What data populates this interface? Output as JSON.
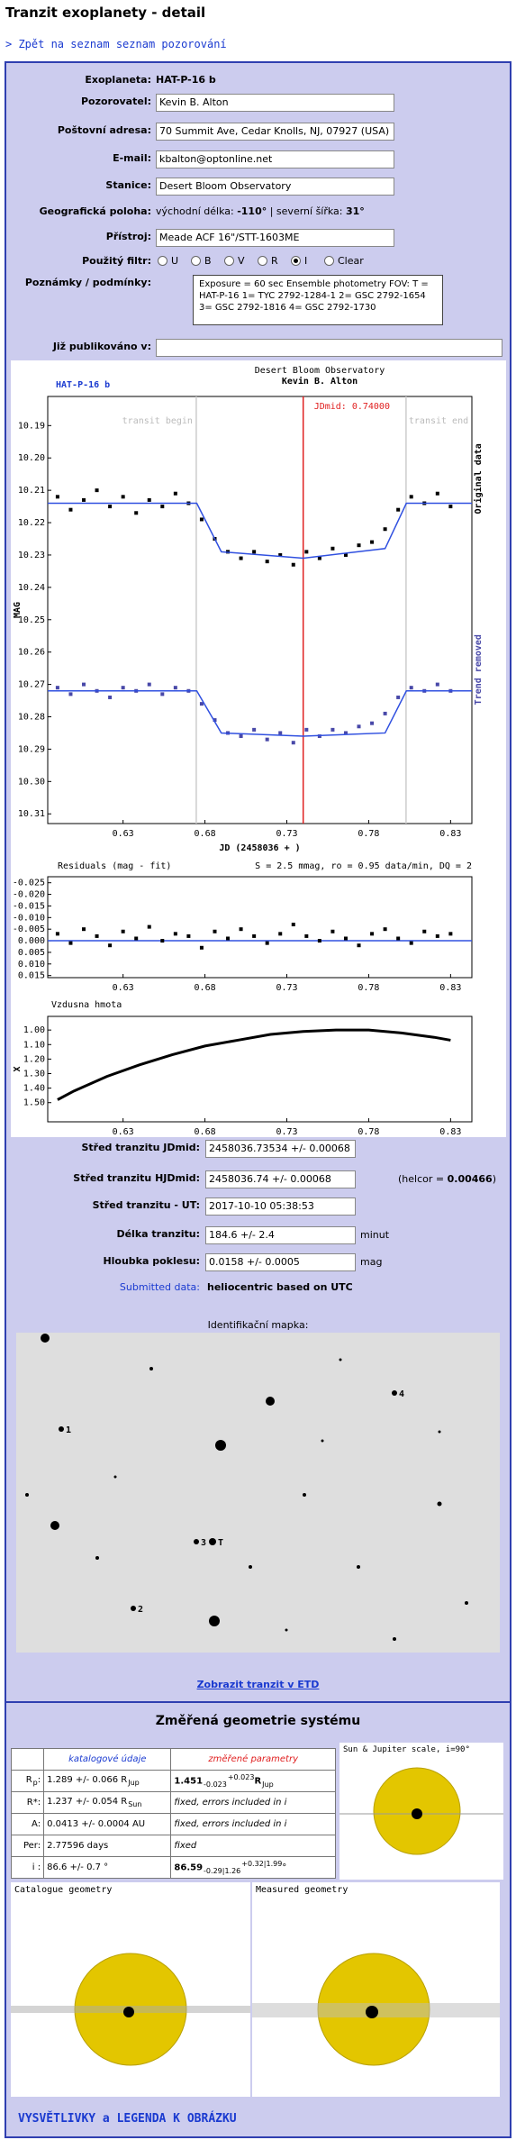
{
  "header": {
    "title": "Tranzit exoplanety - detail",
    "back_link": "> Zpět na seznam seznam pozorování"
  },
  "form": {
    "rows": [
      {
        "label": "Exoplaneta:",
        "value": "HAT-P-16 b"
      },
      {
        "label": "Pozorovatel:",
        "value": "Kevin B. Alton"
      },
      {
        "label": "Poštovní adresa:",
        "value": "70 Summit Ave, Cedar Knolls, NJ, 07927 (USA)"
      },
      {
        "label": "E-mail:",
        "value": "kbalton@optonline.net"
      },
      {
        "label": "Stanice:",
        "value": "Desert Bloom Observatory"
      },
      {
        "label": "Geografická poloha:",
        "segments": [
          {
            "t": "východní délka: "
          },
          {
            "t": "-110°",
            "f": "b"
          },
          {
            "t": " | severní šířka: "
          },
          {
            "t": "31°",
            "f": "b"
          }
        ]
      },
      {
        "label": "Přístroj:",
        "value": "Meade ACF 16\"/STT-1603ME"
      },
      {
        "label": "Použitý filtr:",
        "options": [
          "U",
          "B",
          "V",
          "R",
          "I",
          "Clear"
        ],
        "selected": 4
      },
      {
        "label": "Poznámky / podmínky:",
        "note": "Exposure = 60 sec Ensemble photometry FOV: T = HAT-P-16 1= TYC 2792-1284-1 2= GSC 2792-1654 3= GSC 2792-1816 4= GSC 2792-1730"
      },
      {
        "label": "Již publikováno v:"
      }
    ]
  },
  "chart_data": [
    {
      "type": "scatter",
      "title": "HAT-P-16 b",
      "station": "Desert Bloom Observatory",
      "observer": "Kevin B. Alton",
      "xlabel": "JD (2458036 + )",
      "ylabel": "MAG",
      "xlim": [
        0.584,
        0.843
      ],
      "ylim": [
        10.181,
        10.313
      ],
      "y_inverted": true,
      "xticks": [
        0.63,
        0.68,
        0.73,
        0.78,
        0.83
      ],
      "yticks": [
        10.19,
        {
          "value": 10.2,
          "label": "10.20"
        },
        10.21,
        10.22,
        10.23,
        10.24,
        10.25,
        10.26,
        10.27,
        10.28,
        10.29,
        {
          "value": 10.3,
          "label": "10.30"
        },
        10.31
      ],
      "markers": [
        {
          "label": "transit begin",
          "x": 0.6747,
          "color": "#cccccc"
        },
        {
          "label": "transit end",
          "x": 0.8028,
          "color": "#cccccc"
        },
        {
          "label": "JDmid: 0.74000",
          "x": 0.74,
          "color": "#e02020"
        }
      ],
      "series": [
        {
          "name": "Original data",
          "color": "#000000",
          "style": "points",
          "x": [
            0.59,
            0.598,
            0.606,
            0.614,
            0.622,
            0.63,
            0.638,
            0.646,
            0.654,
            0.662,
            0.67,
            0.678,
            0.686,
            0.694,
            0.702,
            0.71,
            0.718,
            0.726,
            0.734,
            0.742,
            0.75,
            0.758,
            0.766,
            0.774,
            0.782,
            0.79,
            0.798,
            0.806,
            0.814,
            0.822,
            0.83
          ],
          "values": [
            10.212,
            10.216,
            10.213,
            10.21,
            10.215,
            10.212,
            10.217,
            10.213,
            10.215,
            10.211,
            10.214,
            10.219,
            10.225,
            10.229,
            10.231,
            10.229,
            10.232,
            10.23,
            10.233,
            10.229,
            10.231,
            10.228,
            10.23,
            10.227,
            10.226,
            10.222,
            10.216,
            10.212,
            10.214,
            10.211,
            10.215
          ]
        },
        {
          "color": "#3050e0",
          "style": "line",
          "x": [
            0.584,
            0.675,
            0.69,
            0.74,
            0.79,
            0.803,
            0.843
          ],
          "values": [
            10.214,
            10.214,
            10.229,
            10.231,
            10.228,
            10.214,
            10.214
          ]
        },
        {
          "name": "Trend removed",
          "color": "#4848a8",
          "style": "points",
          "x": [
            0.59,
            0.598,
            0.606,
            0.614,
            0.622,
            0.63,
            0.638,
            0.646,
            0.654,
            0.662,
            0.67,
            0.678,
            0.686,
            0.694,
            0.702,
            0.71,
            0.718,
            0.726,
            0.734,
            0.742,
            0.75,
            0.758,
            0.766,
            0.774,
            0.782,
            0.79,
            0.798,
            0.806,
            0.814,
            0.822,
            0.83
          ],
          "values": [
            10.271,
            10.273,
            10.27,
            10.272,
            10.274,
            10.271,
            10.272,
            10.27,
            10.273,
            10.271,
            10.272,
            10.276,
            10.281,
            10.285,
            10.286,
            10.284,
            10.287,
            10.285,
            10.288,
            10.284,
            10.286,
            10.284,
            10.285,
            10.283,
            10.282,
            10.279,
            10.274,
            10.271,
            10.272,
            10.27,
            10.272
          ]
        },
        {
          "color": "#3050e0",
          "style": "line",
          "x": [
            0.584,
            0.675,
            0.69,
            0.74,
            0.79,
            0.803,
            0.843
          ],
          "values": [
            10.272,
            10.272,
            10.285,
            10.286,
            10.285,
            10.272,
            10.272
          ]
        }
      ]
    },
    {
      "type": "scatter",
      "title": "Residuals (mag - fit)",
      "stats": "S = 2.5 mmag, ro = 0.95 data/min, DQ = 2",
      "xlim": [
        0.584,
        0.843
      ],
      "ylim": [
        -0.0276,
        0.0159
      ],
      "y_inverted": true,
      "xticks": [
        0.63,
        0.68,
        0.73,
        0.78,
        0.83
      ],
      "yticks": [
        -0.025,
        {
          "value": -0.02,
          "label": "-0.020"
        },
        -0.015,
        {
          "value": -0.01,
          "label": "-0.010"
        },
        -0.005,
        {
          "value": 0,
          "label": "0.000"
        },
        0.005,
        {
          "value": 0.01,
          "label": "0.010"
        },
        0.015
      ],
      "reference_lines": [
        {
          "y": 0,
          "color": "#3050e0"
        }
      ],
      "series": [
        {
          "color": "#000000",
          "style": "points",
          "x": [
            0.59,
            0.598,
            0.606,
            0.614,
            0.622,
            0.63,
            0.638,
            0.646,
            0.654,
            0.662,
            0.67,
            0.678,
            0.686,
            0.694,
            0.702,
            0.71,
            0.718,
            0.726,
            0.734,
            0.742,
            0.75,
            0.758,
            0.766,
            0.774,
            0.782,
            0.79,
            0.798,
            0.806,
            0.814,
            0.822,
            0.83
          ],
          "values": [
            -0.003,
            0.001,
            -0.005,
            -0.002,
            0.002,
            -0.004,
            -0.001,
            -0.006,
            0,
            -0.003,
            -0.002,
            0.003,
            -0.004,
            -0.001,
            -0.005,
            -0.002,
            0.001,
            -0.003,
            -0.007,
            -0.002,
            0,
            -0.004,
            -0.001,
            0.002,
            -0.003,
            -0.005,
            -0.001,
            0.001,
            -0.004,
            -0.002,
            -0.003
          ]
        }
      ]
    },
    {
      "type": "line",
      "title": "Vzdusna hmota",
      "ylabel": "X",
      "xlim": [
        0.584,
        0.843
      ],
      "ylim": [
        0.906,
        1.632
      ],
      "y_inverted": true,
      "xticks": [
        0.63,
        0.68,
        0.73,
        0.78,
        0.83
      ],
      "yticks": [
        {
          "value": 1,
          "label": "1.00"
        },
        {
          "value": 1.1,
          "label": "1.10"
        },
        {
          "value": 1.2,
          "label": "1.20"
        },
        {
          "value": 1.3,
          "label": "1.30"
        },
        {
          "value": 1.4,
          "label": "1.40"
        },
        {
          "value": 1.5,
          "label": "1.50"
        }
      ],
      "series": [
        {
          "color": "#000000",
          "style": "line",
          "x": [
            0.59,
            0.6,
            0.62,
            0.64,
            0.66,
            0.68,
            0.7,
            0.72,
            0.74,
            0.76,
            0.78,
            0.8,
            0.82,
            0.83
          ],
          "values": [
            1.48,
            1.42,
            1.32,
            1.24,
            1.17,
            1.11,
            1.07,
            1.03,
            1.01,
            1,
            1,
            1.02,
            1.05,
            1.07
          ]
        }
      ]
    }
  ],
  "results": {
    "rows": [
      {
        "label": "Střed tranzitu JDmid:",
        "value": "2458036.73534 +/- 0.00068"
      },
      {
        "label": "Střed tranzitu HJDmid:",
        "value": "2458036.74 +/- 0.00068",
        "note": [
          {
            "t": "(helcor = "
          },
          {
            "t": "0.00466",
            "f": "b"
          },
          {
            "t": ")"
          }
        ]
      },
      {
        "label": "Střed tranzitu - UT:",
        "value": "2017-10-10 05:38:53"
      },
      {
        "label": "Délka tranzitu:",
        "value": "184.6 +/- 2.4",
        "unit": "minut"
      },
      {
        "label": "Hloubka poklesu:",
        "value": "0.0158 +/- 0.0005",
        "unit": "mag"
      },
      {
        "label": "Submitted data:",
        "text": "heliocentric based on UTC"
      }
    ]
  },
  "map": {
    "title": "Identifikační mapka:",
    "labels": [
      "1",
      "2",
      "3",
      "4",
      "T"
    ],
    "link": "Zobrazit tranzit v ETD"
  },
  "geometry": {
    "title": "Změřená geometrie systému",
    "headers": [
      "katalogové údaje",
      "změřené parametry"
    ],
    "rows": [
      {
        "param": [
          {
            "t": "R"
          },
          {
            "t": "p",
            "f": "sub"
          },
          {
            "t": ":"
          }
        ],
        "catalogue": [
          {
            "t": "1.289 +/- 0.066 R"
          },
          {
            "t": "Jup",
            "f": "sub"
          }
        ],
        "measured": [
          {
            "t": "1.451",
            "f": "b"
          },
          {
            "t": "-0.023",
            "f": "sub"
          },
          {
            "t": "+0.023",
            "f": "sup"
          },
          {
            "t": "R",
            "f": "b"
          },
          {
            "t": "Jup",
            "f": "sub"
          }
        ]
      },
      {
        "param": [
          {
            "t": "R*:"
          }
        ],
        "catalogue": [
          {
            "t": "1.237 +/- 0.054 R"
          },
          {
            "t": "Sun",
            "f": "sub"
          }
        ],
        "measured": [
          {
            "t": "fixed, errors included in i",
            "f": "i"
          }
        ]
      },
      {
        "param": [
          {
            "t": "A:"
          }
        ],
        "catalogue": [
          {
            "t": "0.0413 +/- 0.0004 AU"
          }
        ],
        "measured": [
          {
            "t": "fixed, errors included in i",
            "f": "i"
          }
        ]
      },
      {
        "param": [
          {
            "t": "Per:"
          }
        ],
        "catalogue": [
          {
            "t": "2.77596 days"
          }
        ],
        "measured": [
          {
            "t": "fixed",
            "f": "i"
          }
        ]
      },
      {
        "param": [
          {
            "t": "i :"
          }
        ],
        "catalogue": [
          {
            "t": "86.6 +/- 0.7 °"
          }
        ],
        "measured": [
          {
            "t": "86.59",
            "f": "b"
          },
          {
            "t": "-0.29|1.26",
            "f": "sub"
          },
          {
            "t": "+0.32|1.99",
            "f": "sup"
          },
          {
            "t": "°"
          }
        ]
      }
    ],
    "scale_label": "Sun & Jupiter scale, i=90°",
    "catalogue_label": "Catalogue geometry",
    "measured_label": "Measured geometry",
    "legend_link": "VYSVĚTLIVKY a LEGENDA K OBRÁZKU"
  }
}
